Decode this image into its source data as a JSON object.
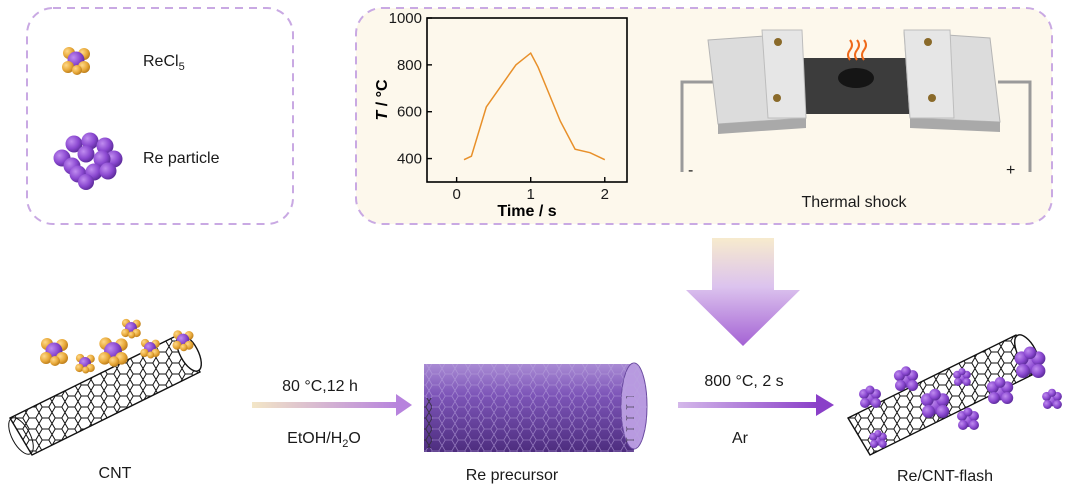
{
  "legend": {
    "items": [
      {
        "label": "ReCl",
        "subscript": "5",
        "icon": "recl5-molecule-icon"
      },
      {
        "label": "Re particle",
        "icon": "re-particle-cluster-icon"
      }
    ]
  },
  "thermal_shock": {
    "caption": "Thermal shock",
    "minus_label": "-",
    "plus_label": "+",
    "chart_data": {
      "type": "line",
      "xlabel": "Time / s",
      "ylabel_italic": "T",
      "ylabel_rest": " / °C",
      "xlim": [
        -0.4,
        2.3
      ],
      "ylim": [
        300,
        1000
      ],
      "xticks": [
        0,
        1,
        2
      ],
      "yticks": [
        400,
        600,
        800,
        1000
      ],
      "x": [
        0.1,
        0.2,
        0.4,
        0.6,
        0.8,
        1.0,
        1.1,
        1.4,
        1.6,
        1.8,
        2.0
      ],
      "y": [
        395,
        410,
        620,
        710,
        800,
        850,
        790,
        560,
        440,
        425,
        395
      ],
      "line_color": "#e8902a"
    }
  },
  "process": {
    "step1": {
      "top": "80 °C,12 h",
      "bottom_pre": "EtOH/H",
      "bottom_sub": "2",
      "bottom_post": "O"
    },
    "step2": {
      "top": "800 °C, 2 s",
      "bottom": "Ar"
    },
    "labels": {
      "cnt": "CNT",
      "precursor": "Re precursor",
      "flash": "Re/CNT-flash"
    }
  },
  "colors": {
    "purple": "#8a48d0",
    "gold": "#e8a93a",
    "dash": "#c9a9e3",
    "panel_fill": "#fdf8ec",
    "arrow_light": "#f2e4c4",
    "arrow_dark": "#9654cc"
  }
}
